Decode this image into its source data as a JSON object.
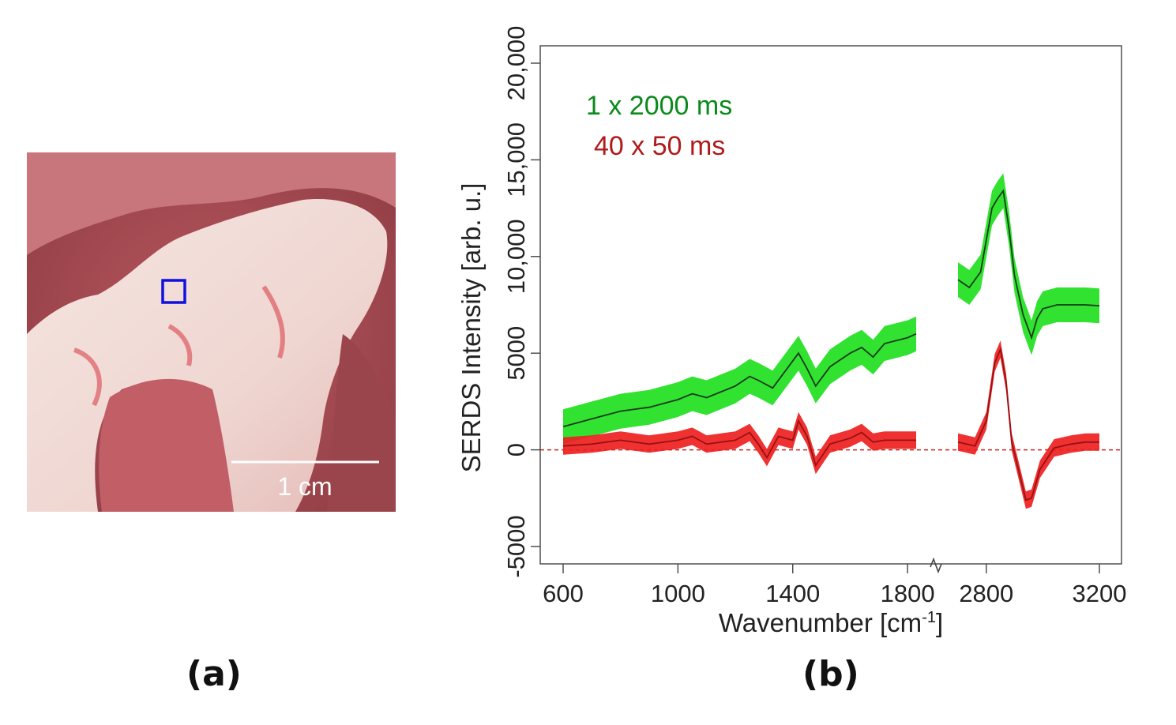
{
  "figure": {
    "panel_a_label": "(a)",
    "panel_b_label": "(b)",
    "photo": {
      "scale_bar_label": "1 cm",
      "marker_color": "#1010e0",
      "colors": {
        "tissue_dark": "#a8484f",
        "tissue_mid": "#c76b72",
        "tissue_light": "#eec9c6",
        "fat_white": "#f4e3de"
      }
    }
  },
  "chart_data": {
    "type": "line",
    "xlabel_main": "Wavenumber [cm",
    "xlabel_sup": "-1",
    "xlabel_end": "]",
    "ylabel": "SERDS Intensity [arb. u.]",
    "ylim": [
      -5000,
      20000
    ],
    "yticks": [
      -5000,
      0,
      5000,
      10000,
      15000,
      20000
    ],
    "ytick_labels": [
      "-5000",
      "0",
      "5000",
      "10,000",
      "15,000",
      "20,000"
    ],
    "x_segments": [
      {
        "range": [
          600,
          1830
        ],
        "ticks": [
          600,
          1000,
          1400,
          1800
        ],
        "tick_labels": [
          "600",
          "1000",
          "1400",
          "1800"
        ]
      },
      {
        "range": [
          2700,
          3200
        ],
        "ticks": [
          2800,
          3200
        ],
        "tick_labels": [
          "2800",
          "3200"
        ]
      }
    ],
    "zero_line": {
      "value": 0,
      "style": "dashed",
      "color": "#cc2222"
    },
    "legend": [
      {
        "label": "1 x 2000 ms",
        "color": "#0a8a1a"
      },
      {
        "label": "40 x 50 ms",
        "color": "#b01a1a"
      }
    ],
    "series": [
      {
        "name": "1 x 2000 ms",
        "band_color": "#1fe01f",
        "mean_color": "#1a3a1a",
        "band_halfwidth": 900,
        "segments": [
          {
            "x": [
              600,
              700,
              800,
              900,
              1000,
              1050,
              1100,
              1200,
              1250,
              1280,
              1330,
              1380,
              1420,
              1450,
              1480,
              1530,
              1600,
              1640,
              1680,
              1720,
              1800,
              1830
            ],
            "y": [
              1200,
              1600,
              2000,
              2200,
              2600,
              2900,
              2700,
              3300,
              3800,
              3600,
              3200,
              4200,
              5000,
              4200,
              3300,
              4300,
              5000,
              5300,
              4800,
              5500,
              5800,
              6000
            ]
          },
          {
            "x": [
              2700,
              2740,
              2780,
              2820,
              2840,
              2860,
              2880,
              2900,
              2930,
              2960,
              2980,
              3000,
              3050,
              3100,
              3150,
              3200
            ],
            "y": [
              8800,
              8400,
              9200,
              12500,
              13000,
              13400,
              11500,
              9000,
              7000,
              5800,
              6800,
              7300,
              7500,
              7500,
              7500,
              7450
            ]
          }
        ]
      },
      {
        "name": "40 x 50 ms",
        "band_color": "#ee1f1f",
        "mean_color": "#991111",
        "band_halfwidth": 450,
        "segments": [
          {
            "x": [
              600,
              700,
              800,
              900,
              1000,
              1050,
              1100,
              1200,
              1250,
              1280,
              1310,
              1350,
              1400,
              1420,
              1450,
              1480,
              1530,
              1600,
              1640,
              1680,
              1720,
              1800,
              1830
            ],
            "y": [
              200,
              300,
              500,
              300,
              500,
              700,
              300,
              500,
              900,
              300,
              -400,
              700,
              500,
              1500,
              700,
              -800,
              300,
              600,
              900,
              400,
              500,
              500,
              500
            ]
          },
          {
            "x": [
              2700,
              2760,
              2800,
              2830,
              2850,
              2870,
              2890,
              2910,
              2940,
              2960,
              2990,
              3040,
              3100,
              3150,
              3200
            ],
            "y": [
              400,
              200,
              1500,
              4500,
              5200,
              3500,
              400,
              -800,
              -2600,
              -2500,
              -1000,
              100,
              300,
              400,
              400
            ]
          }
        ]
      }
    ]
  }
}
